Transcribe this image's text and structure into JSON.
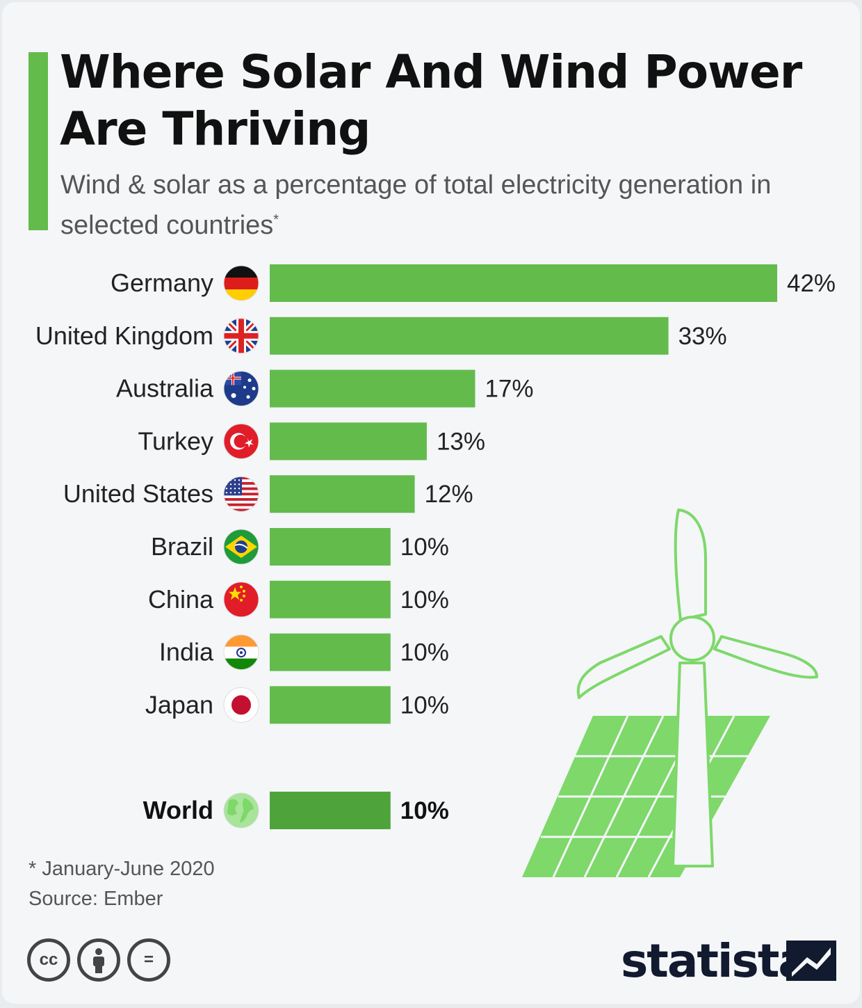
{
  "header": {
    "title": "Where Solar And Wind Power Are Thriving",
    "subtitle": "Wind & solar as a percentage of total electricity generation in selected countries",
    "subtitle_marker": "*"
  },
  "colors": {
    "bar": "#63bb4c",
    "bar_world": "#4ea43b",
    "accent": "#63bb4c",
    "illustration": "#7ed86a"
  },
  "chart_data": {
    "type": "bar",
    "orientation": "horizontal",
    "categories": [
      "Germany",
      "United Kingdom",
      "Australia",
      "Turkey",
      "United States",
      "Brazil",
      "China",
      "India",
      "Japan",
      "World"
    ],
    "values": [
      42,
      33,
      17,
      13,
      12,
      10,
      10,
      10,
      10,
      10
    ],
    "value_labels": [
      "42%",
      "33%",
      "17%",
      "13%",
      "12%",
      "10%",
      "10%",
      "10%",
      "10%",
      "10%"
    ],
    "unit": "%",
    "highlight": "World",
    "title": "Where Solar And Wind Power Are Thriving",
    "subtitle": "Wind & solar as a percentage of total electricity generation in selected countries",
    "xlim": [
      0,
      42
    ],
    "grid": false,
    "legend": "none"
  },
  "flags": [
    "germany-flag-icon",
    "uk-flag-icon",
    "australia-flag-icon",
    "turkey-flag-icon",
    "usa-flag-icon",
    "brazil-flag-icon",
    "china-flag-icon",
    "india-flag-icon",
    "japan-flag-icon",
    "globe-icon"
  ],
  "footer": {
    "footnote": "* January-June 2020",
    "source": "Source: Ember",
    "license_icons": [
      "cc-icon",
      "attribution-icon",
      "no-derivatives-icon"
    ],
    "license_cc": "cc",
    "license_nd": "=",
    "logo": "statista"
  }
}
